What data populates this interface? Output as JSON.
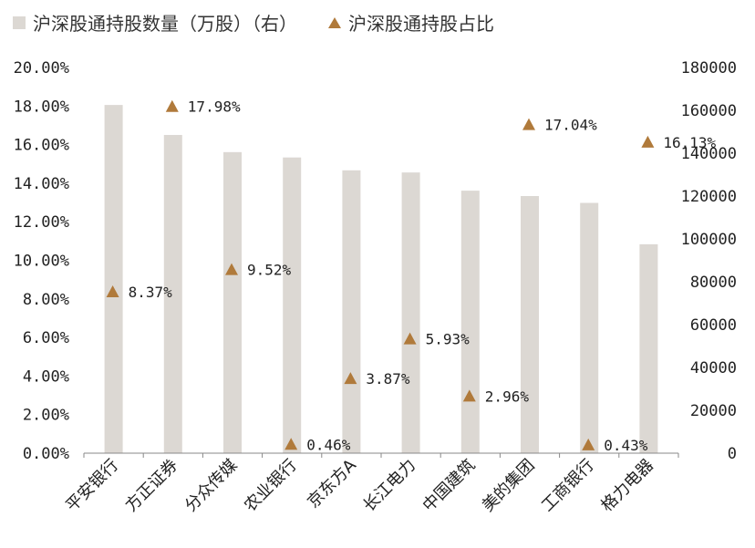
{
  "legend": {
    "bar_label": "沪深股通持股数量（万股）（右）",
    "marker_label": "沪深股通持股占比"
  },
  "colors": {
    "bar": "#dcd8d3",
    "marker": "#b07a3b",
    "axis": "#888888"
  },
  "chart_data": {
    "type": "bar",
    "categories": [
      "平安银行",
      "方正证券",
      "分众传媒",
      "农业银行",
      "京东方A",
      "长江电力",
      "中国建筑",
      "美的集团",
      "工商银行",
      "格力电器"
    ],
    "series": [
      {
        "name": "沪深股通持股数量（万股）（右）",
        "type": "bar",
        "axis": "right",
        "values": [
          162500,
          148500,
          140500,
          138000,
          132000,
          131000,
          122500,
          120000,
          116800,
          97500
        ]
      },
      {
        "name": "沪深股通持股占比",
        "type": "scatter",
        "axis": "left",
        "values": [
          8.37,
          17.98,
          9.52,
          0.46,
          3.87,
          5.93,
          2.96,
          17.04,
          0.43,
          16.13
        ],
        "labels": [
          "8.37%",
          "17.98%",
          "9.52%",
          "0.46%",
          "3.87%",
          "5.93%",
          "2.96%",
          "17.04%",
          "0.43%",
          "16.13%"
        ]
      }
    ],
    "y_left": {
      "ylim": [
        0,
        20
      ],
      "ticks": [
        "0.00%",
        "2.00%",
        "4.00%",
        "6.00%",
        "8.00%",
        "10.00%",
        "12.00%",
        "14.00%",
        "16.00%",
        "18.00%",
        "20.00%"
      ]
    },
    "y_right": {
      "ylim": [
        0,
        180000
      ],
      "ticks": [
        "0",
        "20000",
        "40000",
        "60000",
        "80000",
        "100000",
        "120000",
        "140000",
        "160000",
        "180000"
      ]
    },
    "grid": false,
    "legend_position": "top"
  }
}
